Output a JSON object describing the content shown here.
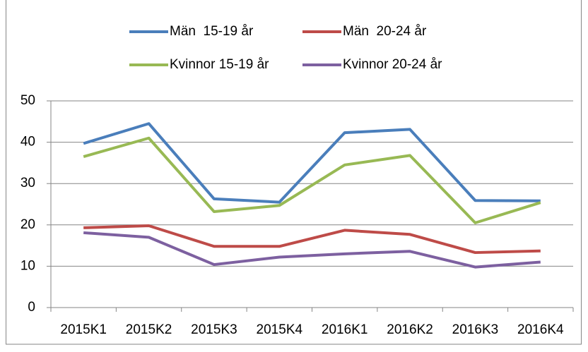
{
  "chart_data": {
    "type": "line",
    "categories": [
      "2015K1",
      "2015K2",
      "2015K3",
      "2015K4",
      "2016K1",
      "2016K2",
      "2016K3",
      "2016K4"
    ],
    "series": [
      {
        "name": "Män  15-19 år",
        "color": "#4a7ebb",
        "values": [
          39.7,
          44.5,
          26.3,
          25.5,
          42.3,
          43.1,
          25.9,
          25.8
        ]
      },
      {
        "name": "Män  20-24 år",
        "color": "#be4b48",
        "values": [
          19.3,
          19.8,
          14.8,
          14.8,
          18.7,
          17.7,
          13.3,
          13.7
        ]
      },
      {
        "name": "Kvinnor 15-19 år",
        "color": "#98b954",
        "values": [
          36.5,
          41.0,
          23.2,
          24.7,
          34.5,
          36.8,
          20.5,
          25.4
        ]
      },
      {
        "name": "Kvinnor 20-24 år",
        "color": "#7d60a0",
        "values": [
          18.1,
          17.0,
          10.4,
          12.2,
          13.0,
          13.6,
          9.8,
          11.0
        ]
      }
    ],
    "ylim": [
      0,
      50
    ],
    "yticks": [
      0,
      10,
      20,
      30,
      40,
      50
    ],
    "grid": true,
    "legend": "top"
  }
}
